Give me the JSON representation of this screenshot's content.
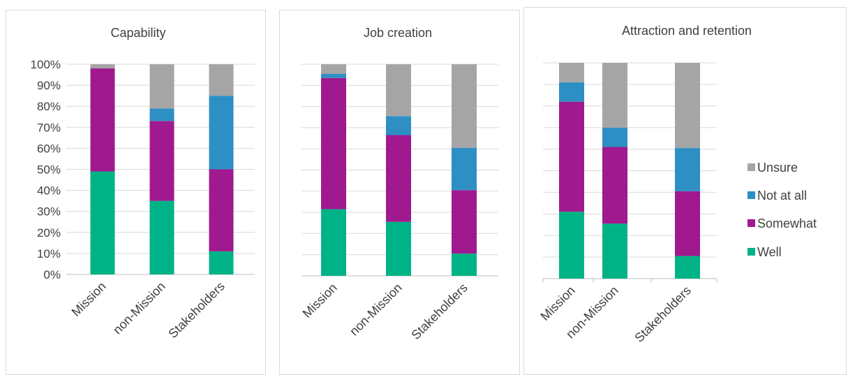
{
  "legend": [
    {
      "key": "unsure",
      "label": "Unsure",
      "color": "#a5a5a5"
    },
    {
      "key": "not_at_all",
      "label": "Not at all",
      "color": "#2e8fc4"
    },
    {
      "key": "somewhat",
      "label": "Somewhat",
      "color": "#a0198e"
    },
    {
      "key": "well",
      "label": "Well",
      "color": "#00b386"
    }
  ],
  "chart_data": [
    {
      "type": "bar",
      "stacked": true,
      "title": "Capability",
      "categories": [
        "Mission",
        "non-Mission",
        "Stakeholders"
      ],
      "yticks": [
        "0%",
        "10%",
        "20%",
        "30%",
        "40%",
        "50%",
        "60%",
        "70%",
        "80%",
        "90%",
        "100%"
      ],
      "ylim": [
        0,
        100
      ],
      "series": [
        {
          "name": "Well",
          "values": [
            49,
            35,
            11
          ]
        },
        {
          "name": "Somewhat",
          "values": [
            49,
            38,
            39
          ]
        },
        {
          "name": "Not at all",
          "values": [
            0,
            6,
            35
          ]
        },
        {
          "name": "Unsure",
          "values": [
            2,
            21,
            15
          ]
        }
      ]
    },
    {
      "type": "bar",
      "stacked": true,
      "title": "Job creation",
      "categories": [
        "Mission",
        "non-Mission",
        "Stakeholders"
      ],
      "ylim": [
        0,
        100
      ],
      "series": [
        {
          "name": "Well",
          "values": [
            31.5,
            25.5,
            10.5
          ]
        },
        {
          "name": "Somewhat",
          "values": [
            62,
            41,
            30
          ]
        },
        {
          "name": "Not at all",
          "values": [
            2,
            9,
            20
          ]
        },
        {
          "name": "Unsure",
          "values": [
            4.5,
            24.5,
            39.5
          ]
        }
      ]
    },
    {
      "type": "bar",
      "stacked": true,
      "title": "Attraction and retention",
      "categories": [
        "Mission",
        "non-Mission",
        "Stakeholders"
      ],
      "ylim": [
        0,
        100
      ],
      "series": [
        {
          "name": "Well",
          "values": [
            31,
            25.5,
            10.5
          ]
        },
        {
          "name": "Somewhat",
          "values": [
            51,
            35.5,
            30
          ]
        },
        {
          "name": "Not at all",
          "values": [
            9,
            9,
            20
          ]
        },
        {
          "name": "Unsure",
          "values": [
            9,
            30,
            39.5
          ]
        }
      ]
    }
  ]
}
